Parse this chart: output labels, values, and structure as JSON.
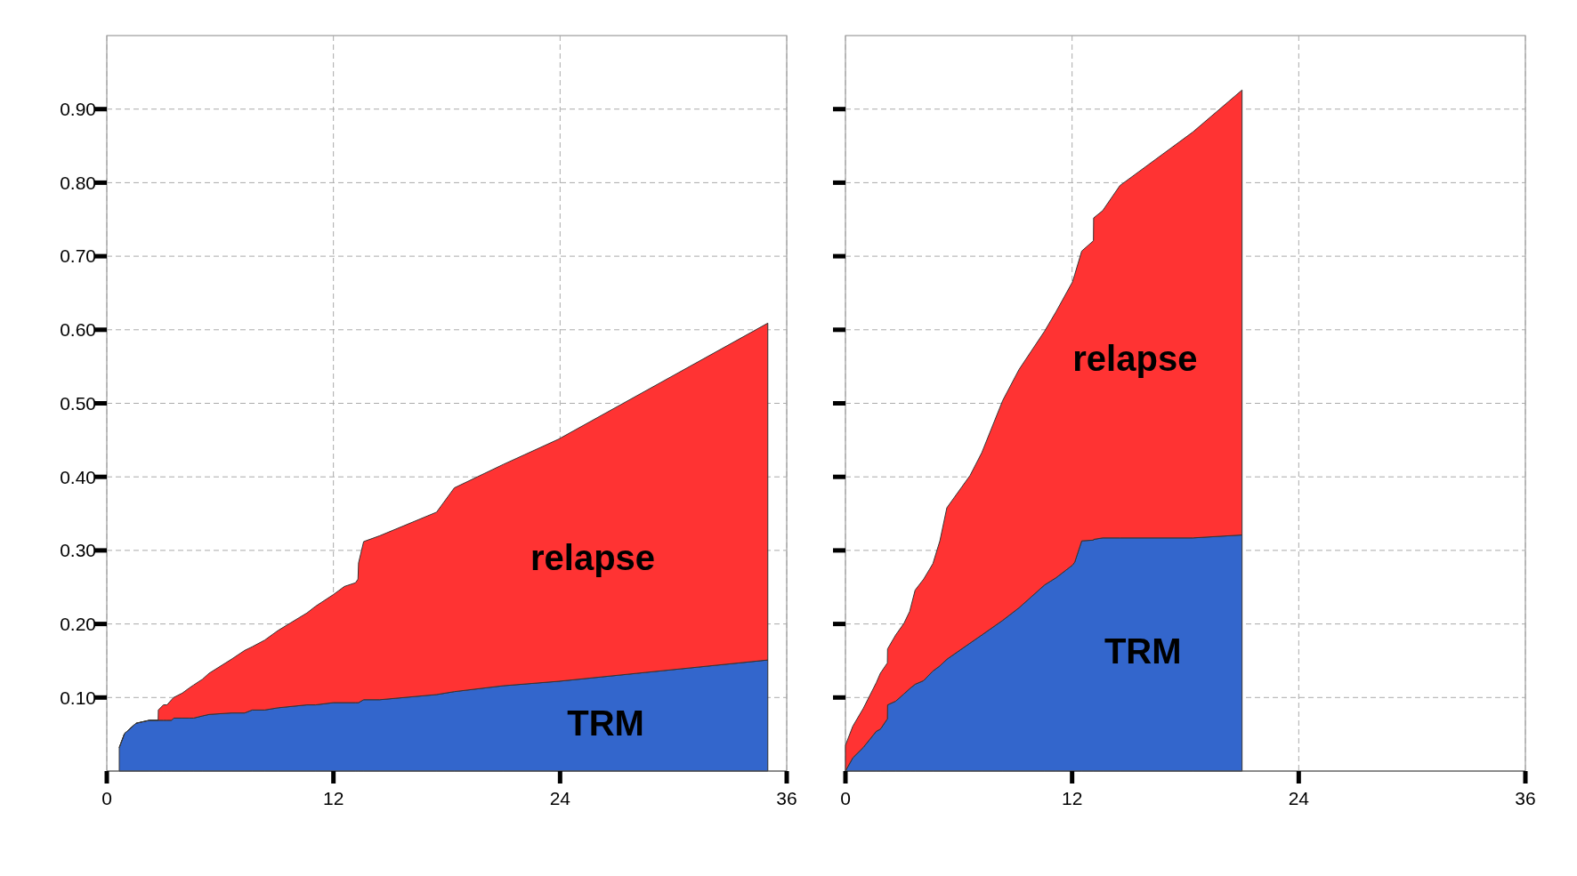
{
  "chart_data": [
    {
      "type": "area",
      "stacked": true,
      "grid": true,
      "x": [
        0.66,
        0.94,
        1.55,
        2.25,
        2.72,
        2.73,
        3.0,
        3.19,
        3.43,
        3.54,
        4.0,
        4.37,
        4.6,
        5.07,
        5.42,
        6.6,
        7.3,
        7.7,
        8.36,
        9.06,
        10.6,
        11.05,
        12.0,
        12.58,
        13.17,
        13.3,
        13.33,
        13.6,
        14.46,
        17.46,
        18.4,
        21.0,
        23.9,
        35.0
      ],
      "series": [
        {
          "name": "TRM",
          "color": "#3366cc",
          "values": [
            0.032,
            0.051,
            0.065,
            0.069,
            0.069,
            0.069,
            0.069,
            0.069,
            0.069,
            0.072,
            0.072,
            0.072,
            0.072,
            0.075,
            0.077,
            0.079,
            0.079,
            0.083,
            0.083,
            0.086,
            0.09,
            0.09,
            0.093,
            0.093,
            0.093,
            0.093,
            0.093,
            0.097,
            0.097,
            0.104,
            0.108,
            0.116,
            0.122,
            0.151
          ]
        },
        {
          "name": "relapse",
          "color": "#ff3333",
          "values": [
            0,
            0,
            0,
            0,
            0,
            0.014,
            0.021,
            0.021,
            0.028,
            0.028,
            0.034,
            0.041,
            0.045,
            0.05,
            0.056,
            0.073,
            0.085,
            0.086,
            0.095,
            0.105,
            0.125,
            0.134,
            0.147,
            0.158,
            0.163,
            0.168,
            0.19,
            0.215,
            0.223,
            0.248,
            0.277,
            0.301,
            0.329,
            0.458
          ]
        }
      ],
      "xlim": [
        0,
        36
      ],
      "xticks": [
        0,
        12,
        24,
        36
      ],
      "ylim": [
        0,
        1
      ],
      "yticks": [
        {
          "value": 0.1,
          "label": "0.10"
        },
        {
          "value": 0.2,
          "label": "0.20"
        },
        {
          "value": 0.3,
          "label": "0.30"
        },
        {
          "value": 0.4,
          "label": "0.40"
        },
        {
          "value": 0.5,
          "label": "0.50"
        },
        {
          "value": 0.6,
          "label": "0.60"
        },
        {
          "value": 0.7,
          "label": "0.70"
        },
        {
          "value": 0.8,
          "label": "0.80"
        },
        {
          "value": 0.9,
          "label": "0.90"
        }
      ]
    },
    {
      "type": "area",
      "stacked": true,
      "grid": true,
      "tick_labels": "x",
      "x": [
        0,
        0.39,
        0.94,
        1.63,
        1.85,
        2.22,
        2.23,
        2.66,
        3.1,
        3.4,
        3.69,
        4.14,
        4.63,
        5.0,
        5.37,
        6.6,
        7.22,
        8.33,
        9.19,
        10.54,
        11.16,
        12.02,
        12.14,
        12.51,
        13.13,
        13.14,
        13.62,
        14.53,
        18.4,
        21.0
      ],
      "series": [
        {
          "name": "TRM",
          "color": "#3366cc",
          "values": [
            0,
            0.018,
            0.032,
            0.054,
            0.057,
            0.071,
            0.09,
            0.095,
            0.105,
            0.112,
            0.118,
            0.123,
            0.136,
            0.143,
            0.152,
            0.174,
            0.185,
            0.205,
            0.222,
            0.253,
            0.263,
            0.28,
            0.284,
            0.313,
            0.314,
            0.315,
            0.317,
            0.317,
            0.317,
            0.321
          ]
        },
        {
          "name": "relapse",
          "color": "#ff3333",
          "values": [
            0.035,
            0.043,
            0.053,
            0.066,
            0.076,
            0.076,
            0.076,
            0.09,
            0.096,
            0.105,
            0.128,
            0.138,
            0.146,
            0.17,
            0.206,
            0.228,
            0.248,
            0.299,
            0.324,
            0.345,
            0.362,
            0.385,
            0.391,
            0.394,
            0.407,
            0.437,
            0.445,
            0.479,
            0.552,
            0.605
          ]
        }
      ],
      "xlim": [
        0,
        36
      ],
      "xticks": [
        0,
        12,
        24,
        36
      ],
      "ylim": [
        0,
        1
      ],
      "yticks": [
        {
          "value": 0.1,
          "label": null
        },
        {
          "value": 0.2,
          "label": null
        },
        {
          "value": 0.3,
          "label": null
        },
        {
          "value": 0.4,
          "label": null
        },
        {
          "value": 0.5,
          "label": null
        },
        {
          "value": 0.6,
          "label": null
        },
        {
          "value": 0.7,
          "label": null
        },
        {
          "value": 0.8,
          "label": null
        },
        {
          "value": 0.9,
          "label": null
        }
      ]
    }
  ]
}
